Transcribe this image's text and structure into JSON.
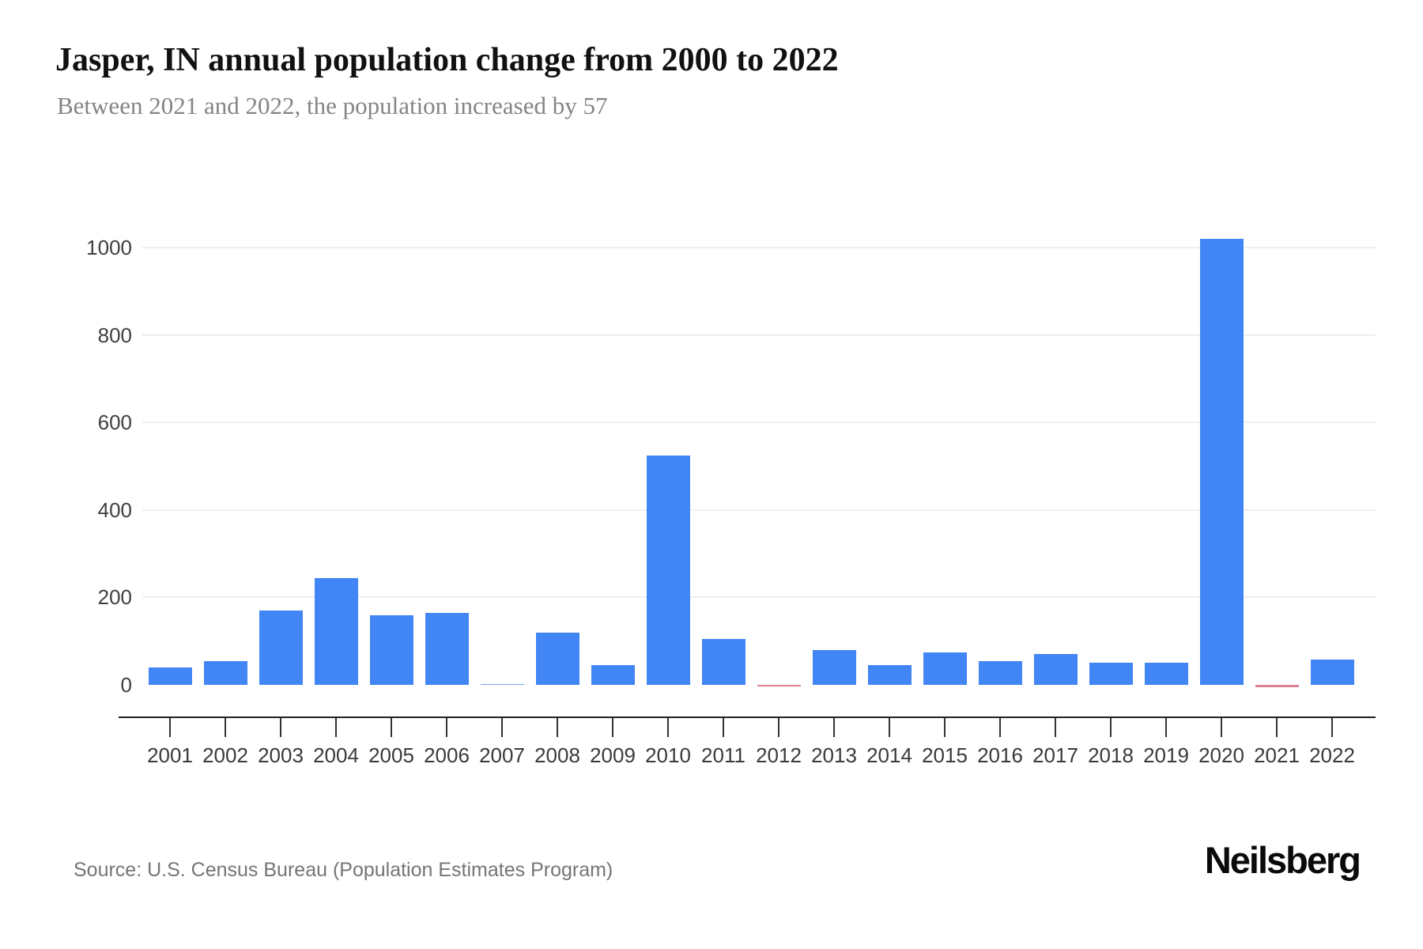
{
  "header": {
    "title": "Jasper, IN annual population change from 2000 to 2022",
    "subtitle": "Between 2021 and 2022, the population increased by 57"
  },
  "chart_data": {
    "type": "bar",
    "title": "Jasper, IN annual population change from 2000 to 2022",
    "subtitle": "Between 2021 and 2022, the population increased by 57",
    "categories": [
      "2001",
      "2002",
      "2003",
      "2004",
      "2005",
      "2006",
      "2007",
      "2008",
      "2009",
      "2010",
      "2011",
      "2012",
      "2013",
      "2014",
      "2015",
      "2016",
      "2017",
      "2018",
      "2019",
      "2020",
      "2021",
      "2022"
    ],
    "values": [
      40,
      55,
      170,
      245,
      160,
      165,
      2,
      120,
      45,
      525,
      105,
      -2,
      80,
      45,
      75,
      55,
      70,
      50,
      50,
      1020,
      -5,
      57
    ],
    "xlabel": "",
    "ylabel": "",
    "yticks": [
      0,
      200,
      400,
      600,
      800,
      1000
    ],
    "ylim": [
      -20,
      1050
    ],
    "grid": true,
    "legend": false,
    "colors": {
      "positive_bar": "#4285f4",
      "negative_bar": "#d25b6c",
      "gridline": "#efefef",
      "axis": "#212121",
      "tick_label": "#404040"
    }
  },
  "footer": {
    "source": "Source: U.S. Census Bureau (Population Estimates Program)",
    "brand": "Neilsberg"
  }
}
